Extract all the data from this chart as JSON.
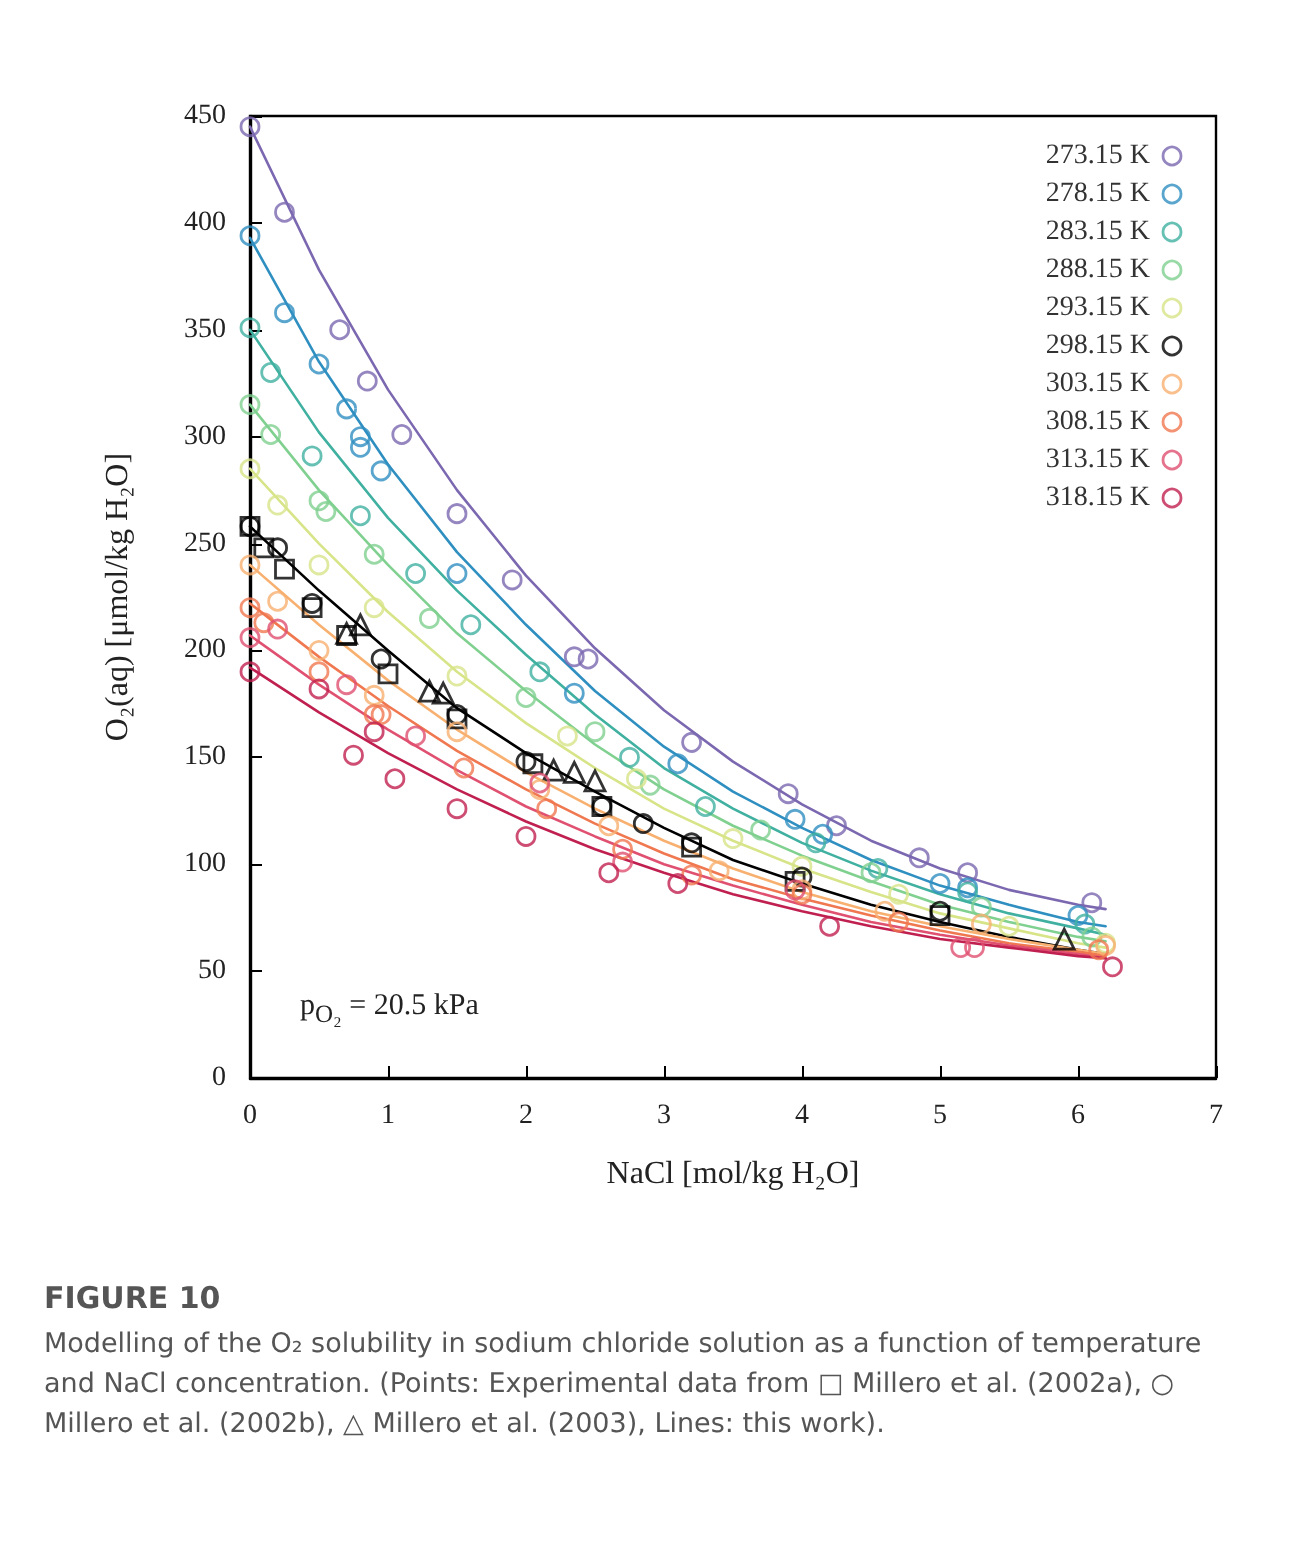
{
  "chart_data": {
    "type": "scatter",
    "title": "FIGURE 10",
    "xlabel": "NaCl [mol/kg H₂O]",
    "ylabel": "O₂(aq) [μmol/kg H₂O]",
    "annotations": [
      "p$_{O₂}$ = 20.5 kPa",
      "Modelling of the O₂ solubility in sodium chloride solution as a function of temperature and NaCl concentration. (Points: Experimental data from □ Millero et al. (2002a), ○ Millero et al. (2002b), △ Millero et al. (2003), Lines: this work)."
    ],
    "xlim": [
      0,
      7
    ],
    "xticks": [
      0,
      1,
      2,
      3,
      4,
      5,
      6,
      7
    ],
    "ylim": [
      0,
      450
    ],
    "yticks": [
      0,
      50,
      100,
      150,
      200,
      250,
      300,
      350,
      400,
      450
    ],
    "grid": false,
    "legend": "top right",
    "marker": "circle",
    "x": [
      0,
      0.5,
      1,
      1.5,
      2,
      2.5,
      3,
      3.5,
      4,
      4.5,
      5,
      5.5,
      6,
      6.2
    ],
    "series": [
      {
        "type": "line",
        "marker": "none",
        "color": "#7b68b0",
        "values": [
          445,
          378,
          322,
          275,
          235,
          201,
          172,
          148,
          128,
          111,
          98,
          88,
          81,
          79
        ]
      },
      {
        "type": "line",
        "marker": "none",
        "color": "#2f8fc0",
        "values": [
          393,
          335,
          287,
          246,
          212,
          181,
          155,
          134,
          117,
          102,
          90,
          81,
          73,
          71
        ]
      },
      {
        "type": "line",
        "marker": "none",
        "color": "#40b0a0",
        "values": [
          350,
          302,
          262,
          228,
          198,
          170,
          145,
          126,
          110,
          97,
          86,
          77,
          70,
          67
        ]
      },
      {
        "type": "line",
        "marker": "none",
        "color": "#80d090",
        "values": [
          315,
          275,
          240,
          208,
          181,
          156,
          135,
          118,
          104,
          92,
          81,
          73,
          66,
          64
        ]
      },
      {
        "type": "line",
        "marker": "none",
        "color": "#d8e488",
        "values": [
          285,
          250,
          218,
          190,
          166,
          145,
          126,
          111,
          98,
          87,
          77,
          70,
          63,
          61
        ]
      },
      {
        "type": "line",
        "marker": "none",
        "color": "#000000",
        "values": [
          258,
          228,
          200,
          173,
          152,
          134,
          117,
          102,
          91,
          81,
          73,
          66,
          60,
          58
        ]
      },
      {
        "type": "line",
        "marker": "none",
        "color": "#f8b070",
        "values": [
          240,
          212,
          186,
          163,
          143,
          126,
          111,
          98,
          87,
          78,
          71,
          65,
          60,
          58
        ]
      },
      {
        "type": "line",
        "marker": "none",
        "color": "#f07850",
        "values": [
          222,
          197,
          174,
          153,
          135,
          119,
          105,
          93,
          84,
          76,
          69,
          63,
          59,
          57
        ]
      },
      {
        "type": "line",
        "marker": "none",
        "color": "#e05070",
        "values": [
          207,
          184,
          163,
          144,
          127,
          113,
          100,
          90,
          81,
          73,
          67,
          62,
          58,
          56
        ]
      },
      {
        "type": "line",
        "marker": "none",
        "color": "#c02050",
        "values": [
          192,
          171,
          152,
          135,
          120,
          107,
          96,
          86,
          78,
          71,
          65,
          61,
          57,
          56
        ]
      },
      {
        "name": "273.15 K",
        "color": "#7b68b0",
        "x": [
          0,
          0.25,
          0.65,
          0.85,
          1.1,
          1.5,
          1.9,
          2.35,
          2.45,
          3.2,
          3.9,
          4.25,
          4.85,
          5.2,
          6.1
        ],
        "values": [
          445,
          405,
          350,
          326,
          301,
          264,
          233,
          197,
          196,
          157,
          133,
          118,
          103,
          96,
          82
        ]
      },
      {
        "name": "278.15 K",
        "color": "#2f8fc0",
        "x": [
          0,
          0.25,
          0.5,
          0.7,
          0.8,
          0.8,
          0.95,
          1.5,
          2.35,
          3.1,
          3.95,
          4.15,
          5.0,
          5.2,
          6.0
        ],
        "values": [
          394,
          358,
          334,
          313,
          300,
          295,
          284,
          236,
          180,
          147,
          121,
          114,
          91,
          89,
          76
        ]
      },
      {
        "name": "283.15 K",
        "color": "#40b0a0",
        "x": [
          0,
          0.15,
          0.45,
          0.8,
          1.2,
          1.6,
          2.1,
          2.75,
          3.3,
          4.1,
          4.55,
          5.2,
          6.05
        ],
        "values": [
          351,
          330,
          291,
          263,
          236,
          212,
          190,
          150,
          127,
          110,
          98,
          87,
          72
        ]
      },
      {
        "name": "288.15 K",
        "color": "#80d090",
        "x": [
          0,
          0.15,
          0.5,
          0.55,
          0.9,
          1.3,
          2.0,
          2.5,
          2.9,
          3.7,
          4.5,
          5.3,
          6.1
        ],
        "values": [
          315,
          301,
          270,
          265,
          245,
          215,
          178,
          162,
          137,
          116,
          96,
          80,
          66
        ]
      },
      {
        "name": "293.15 K",
        "color": "#d8e488",
        "x": [
          0,
          0.2,
          0.5,
          0.9,
          1.5,
          2.3,
          2.8,
          3.5,
          4.0,
          4.7,
          5.5,
          6.2
        ],
        "values": [
          285,
          268,
          240,
          220,
          188,
          160,
          140,
          112,
          99,
          86,
          71,
          63
        ]
      },
      {
        "name": "298.15 K",
        "color": "#000000",
        "x": [
          0,
          0.2,
          0.45,
          0.95,
          1.5,
          2.0,
          2.55,
          2.85,
          3.2,
          4.0,
          5.0
        ],
        "values": [
          258,
          248,
          222,
          196,
          170,
          148,
          127,
          119,
          110,
          94,
          78
        ]
      },
      {
        "marker": "square",
        "color": "#000000",
        "x": [
          0,
          0.1,
          0.25,
          0.45,
          0.7,
          1.0,
          1.5,
          2.05,
          2.55,
          3.2,
          3.95,
          5.0
        ],
        "values": [
          258,
          248,
          238,
          220,
          207,
          189,
          168,
          147,
          127,
          108,
          92,
          76
        ]
      },
      {
        "marker": "triangle",
        "color": "#000000",
        "x": [
          0.7,
          0.8,
          1.3,
          1.4,
          2.2,
          2.35,
          2.5,
          5.9
        ],
        "values": [
          208,
          212,
          181,
          180,
          144,
          143,
          139,
          65
        ]
      },
      {
        "name": "303.15 K",
        "color": "#f8b070",
        "x": [
          0,
          0.2,
          0.5,
          0.9,
          1.5,
          2.1,
          2.6,
          3.4,
          4.0,
          4.6,
          5.3,
          6.2
        ],
        "values": [
          240,
          223,
          200,
          179,
          162,
          135,
          118,
          97,
          88,
          78,
          72,
          62
        ]
      },
      {
        "name": "308.15 K",
        "color": "#f07850",
        "x": [
          0,
          0.1,
          0.5,
          0.9,
          0.95,
          1.55,
          2.15,
          2.7,
          3.2,
          4.0,
          4.7,
          6.15
        ],
        "values": [
          220,
          213,
          190,
          170,
          170,
          145,
          126,
          107,
          95,
          86,
          73,
          60
        ]
      },
      {
        "name": "313.15 K",
        "color": "#e05070",
        "x": [
          0,
          0.2,
          0.7,
          1.2,
          2.1,
          2.7,
          3.95,
          5.15,
          5.25
        ],
        "values": [
          206,
          210,
          184,
          160,
          138,
          101,
          88,
          61,
          61
        ]
      },
      {
        "name": "318.15 K",
        "color": "#c02050",
        "x": [
          0,
          0.5,
          0.75,
          0.9,
          1.05,
          1.5,
          2.0,
          2.6,
          3.1,
          4.2,
          6.25
        ],
        "values": [
          190,
          182,
          151,
          162,
          140,
          126,
          113,
          96,
          91,
          71,
          52
        ]
      }
    ]
  }
}
